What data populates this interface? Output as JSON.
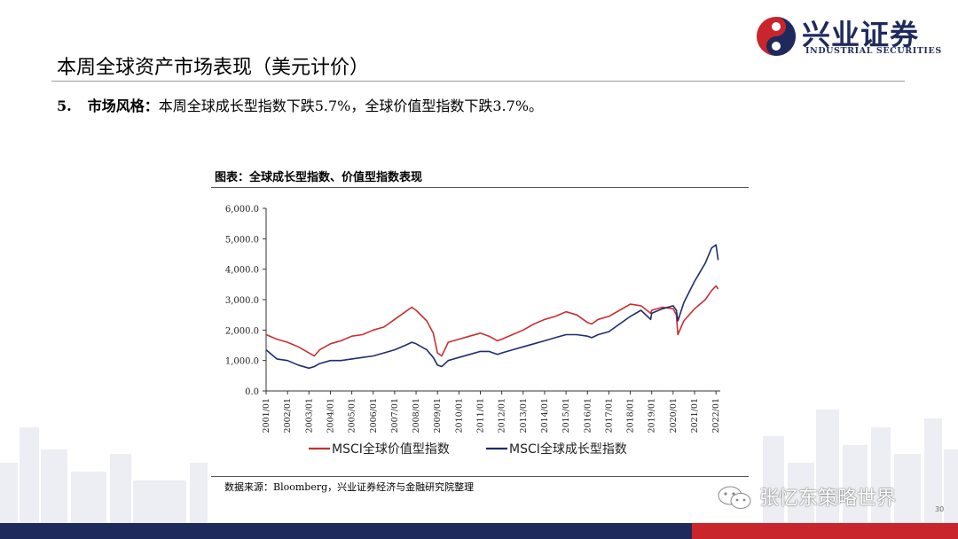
{
  "header": {
    "logo_cn": "兴业证券",
    "logo_en": "INDUSTRIAL SECURITIES",
    "title": "本周全球资产市场表现（美元计价）"
  },
  "subhead": {
    "number": "5.",
    "label": "市场风格：",
    "text": "本周全球成长型指数下跌5.7%，全球价值型指数下跌3.7%。"
  },
  "colors": {
    "brand_blue": "#1f2a5c",
    "brand_red": "#c8252c",
    "value_series": "#c8302f",
    "growth_series": "#1f2d6e"
  },
  "chart_data": {
    "type": "line",
    "title": "图表：全球成长型指数、价值型指数表现",
    "ylim": [
      0,
      6000
    ],
    "yticks": [
      0,
      1000,
      2000,
      3000,
      4000,
      5000,
      6000
    ],
    "ytick_labels": [
      "0.0",
      "1,000.0",
      "2,000.0",
      "3,000.0",
      "4,000.0",
      "5,000.0",
      "6,000.0"
    ],
    "xtick_labels": [
      "2001/01",
      "2002/01",
      "2003/01",
      "2004/01",
      "2005/01",
      "2006/01",
      "2007/01",
      "2008/01",
      "2009/01",
      "2010/01",
      "2011/01",
      "2012/01",
      "2013/01",
      "2014/01",
      "2015/01",
      "2016/01",
      "2017/01",
      "2018/01",
      "2019/01",
      "2020/01",
      "2021/01",
      "2022/01"
    ],
    "x": [
      2001.0,
      2001.5,
      2002.0,
      2002.5,
      2003.0,
      2003.25,
      2003.5,
      2004.0,
      2004.5,
      2005.0,
      2005.5,
      2006.0,
      2006.5,
      2007.0,
      2007.5,
      2007.8,
      2008.0,
      2008.5,
      2008.8,
      2009.0,
      2009.2,
      2009.5,
      2010.0,
      2010.5,
      2011.0,
      2011.4,
      2011.8,
      2012.0,
      2012.5,
      2013.0,
      2013.5,
      2014.0,
      2014.5,
      2015.0,
      2015.5,
      2016.0,
      2016.2,
      2016.5,
      2017.0,
      2017.5,
      2018.0,
      2018.5,
      2018.95,
      2019.0,
      2019.5,
      2020.0,
      2020.15,
      2020.22,
      2020.5,
      2021.0,
      2021.5,
      2021.8,
      2022.0,
      2022.1
    ],
    "series": [
      {
        "name": "MSCI全球价值型指数",
        "color": "#c8302f",
        "values": [
          1850,
          1700,
          1600,
          1450,
          1250,
          1150,
          1350,
          1550,
          1650,
          1800,
          1850,
          2000,
          2100,
          2350,
          2600,
          2750,
          2650,
          2300,
          1900,
          1250,
          1150,
          1600,
          1700,
          1800,
          1900,
          1800,
          1650,
          1700,
          1850,
          2000,
          2200,
          2350,
          2450,
          2600,
          2500,
          2250,
          2200,
          2350,
          2450,
          2650,
          2850,
          2800,
          2550,
          2650,
          2750,
          2700,
          2500,
          1850,
          2300,
          2700,
          3000,
          3300,
          3450,
          3350
        ]
      },
      {
        "name": "MSCI全球成长型指数",
        "color": "#1f2d6e",
        "values": [
          1350,
          1050,
          1000,
          850,
          750,
          800,
          900,
          1000,
          1000,
          1050,
          1100,
          1150,
          1250,
          1350,
          1500,
          1600,
          1550,
          1350,
          1100,
          850,
          800,
          1000,
          1100,
          1200,
          1300,
          1300,
          1200,
          1250,
          1350,
          1450,
          1550,
          1650,
          1750,
          1850,
          1850,
          1800,
          1750,
          1850,
          1950,
          2200,
          2450,
          2650,
          2350,
          2550,
          2700,
          2800,
          2650,
          2300,
          2900,
          3600,
          4200,
          4700,
          4800,
          4300
        ]
      }
    ],
    "legend_position": "bottom"
  },
  "source": "数据来源：Bloomberg，兴业证券经济与金融研究院整理",
  "watermark": "张忆东策略世界",
  "page_number": "30"
}
